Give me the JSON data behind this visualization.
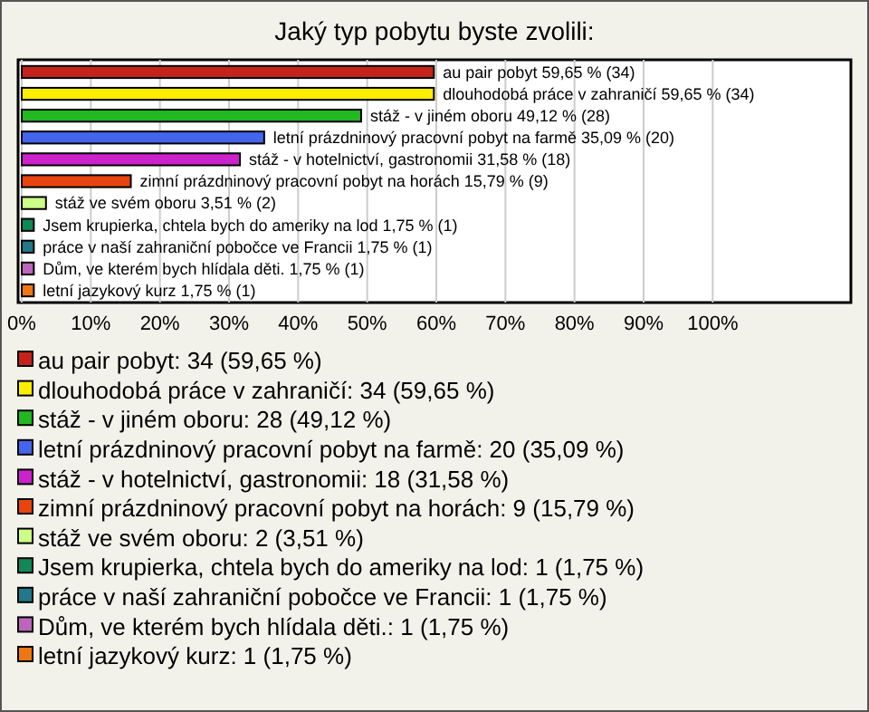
{
  "chart_data": {
    "type": "bar",
    "orientation": "horizontal",
    "title": "Jaký typ pobytu byste zvolili:",
    "categories": [
      "au pair pobyt",
      "dlouhodobá práce v zahraničí",
      "stáž - v jiném oboru",
      "letní prázdninový pracovní pobyt na farmě",
      "stáž - v hotelnictví, gastronomii",
      "zimní prázdninový pracovní pobyt na horách",
      "stáž ve svém oboru",
      "Jsem krupierka, chtela bych do ameriky na lod",
      "práce v naší zahraniční pobočce ve Francii",
      "Dům, ve kterém bych hlídala děti.",
      "letní jazykový kurz"
    ],
    "values": [
      59.65,
      59.65,
      49.12,
      35.09,
      31.58,
      15.79,
      3.51,
      1.75,
      1.75,
      1.75,
      1.75
    ],
    "colors": [
      "#c4221a",
      "#ffee00",
      "#22b822",
      "#4466ee",
      "#cc22cc",
      "#e84410",
      "#ccff88",
      "#118855",
      "#227788",
      "#bb66bb",
      "#ee7711"
    ],
    "value_labels": [
      "59,65 % (34)",
      "59,65 % (34)",
      "49,12 % (28)",
      "35,09 % (20)",
      "31,58 % (18)",
      "15,79 % (9)",
      "3,51 % (2)",
      "1,75 % (1)",
      "1,75 % (1)",
      "1,75 % (1)",
      "1,75 % (1)"
    ],
    "annotations": [
      "au pair pobyt: 34 (59,65 %)",
      "dlouhodobá práce v zahraničí: 34 (59,65 %)",
      "stáž - v jiném oboru: 28 (49,12 %)",
      "letní prázdninový pracovní pobyt na farmě: 20 (35,09 %)",
      "stáž - v hotelnictví, gastronomii: 18 (31,58 %)",
      "zimní prázdninový pracovní pobyt na horách: 9 (15,79 %)",
      "stáž ve svém oboru: 2 (3,51 %)",
      "Jsem krupierka, chtela bych do ameriky na lod: 1 (1,75 %)",
      "práce v naší zahraniční pobočce ve Francii: 1 (1,75 %)",
      "Dům, ve kterém bych hlídala děti.: 1 (1,75 %)",
      "letní jazykový kurz: 1 (1,75 %)"
    ],
    "xlim": [
      0,
      120
    ],
    "xticks": [
      {
        "value": 0,
        "label": "0%"
      },
      {
        "value": 10,
        "label": "10%"
      },
      {
        "value": 20,
        "label": "20%"
      },
      {
        "value": 30,
        "label": "30%"
      },
      {
        "value": 40,
        "label": "40%"
      },
      {
        "value": 50,
        "label": "50%"
      },
      {
        "value": 60,
        "label": "60%"
      },
      {
        "value": 70,
        "label": "70%"
      },
      {
        "value": 80,
        "label": "80%"
      },
      {
        "value": 90,
        "label": "90%"
      },
      {
        "value": 100,
        "label": "100%"
      }
    ],
    "grid": "x"
  }
}
